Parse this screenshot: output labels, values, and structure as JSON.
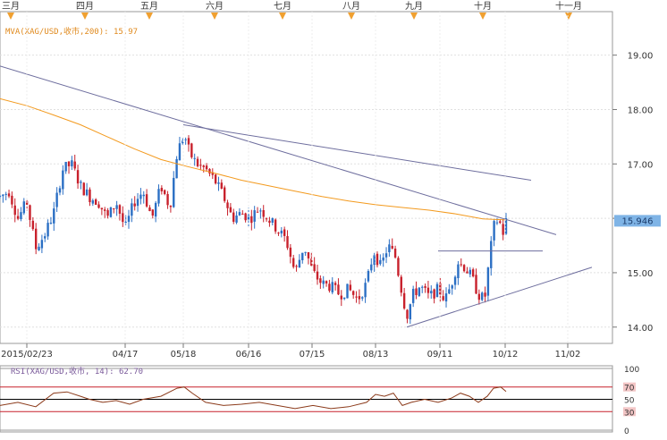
{
  "chart_data": {
    "type": "candlestick",
    "instrument": "XAG/USD",
    "month_labels": [
      "三月",
      "四月",
      "五月",
      "六月",
      "七月",
      "八月",
      "九月",
      "十月",
      "十一月"
    ],
    "date_labels": [
      "2015/02/23",
      "04/17",
      "05/18",
      "06/16",
      "07/15",
      "08/13",
      "09/11",
      "10/12",
      "11/02"
    ],
    "price_axis": {
      "ticks": [
        "19.00",
        "18.00",
        "17.00",
        "16.00",
        "15.00",
        "14.00"
      ],
      "tick_values": [
        19,
        18,
        17,
        16,
        15,
        14
      ],
      "ylim": [
        13.7,
        19.8
      ],
      "last_price_label": "15.946",
      "last_price": 15.946
    },
    "mva_label": "MVA(XAG/USD,收市,200): 15.97",
    "rsi_label": "RSI(XAG/USD,收市, 14): 62.70",
    "rsi_axis": {
      "ticks": [
        "100",
        "70",
        "50",
        "30",
        "0"
      ],
      "tick_values": [
        100,
        70,
        50,
        30,
        0
      ],
      "ylim": [
        0,
        100
      ]
    },
    "candle_count": 170,
    "price_path": [
      [
        0,
        16.4
      ],
      [
        10,
        16.5
      ],
      [
        20,
        16.0
      ],
      [
        30,
        16.3
      ],
      [
        40,
        15.45
      ],
      [
        50,
        15.7
      ],
      [
        60,
        16.1
      ],
      [
        70,
        16.9
      ],
      [
        80,
        17.0
      ],
      [
        90,
        16.6
      ],
      [
        100,
        16.4
      ],
      [
        110,
        16.3
      ],
      [
        120,
        16.0
      ],
      [
        130,
        16.3
      ],
      [
        140,
        15.8
      ],
      [
        150,
        16.3
      ],
      [
        160,
        16.5
      ],
      [
        170,
        16.0
      ],
      [
        180,
        16.6
      ],
      [
        190,
        16.2
      ],
      [
        198,
        17.2
      ],
      [
        206,
        17.55
      ],
      [
        212,
        17.2
      ],
      [
        220,
        17.0
      ],
      [
        230,
        16.9
      ],
      [
        240,
        16.7
      ],
      [
        250,
        16.4
      ],
      [
        260,
        16.0
      ],
      [
        270,
        16.1
      ],
      [
        280,
        16.0
      ],
      [
        290,
        16.2
      ],
      [
        300,
        16.0
      ],
      [
        310,
        15.8
      ],
      [
        320,
        15.6
      ],
      [
        330,
        15.0
      ],
      [
        340,
        15.5
      ],
      [
        350,
        15.0
      ],
      [
        360,
        14.8
      ],
      [
        370,
        14.75
      ],
      [
        380,
        14.6
      ],
      [
        390,
        14.7
      ],
      [
        400,
        14.5
      ],
      [
        410,
        14.8
      ],
      [
        418,
        15.4
      ],
      [
        426,
        15.1
      ],
      [
        434,
        15.5
      ],
      [
        442,
        15.3
      ],
      [
        450,
        14.6
      ],
      [
        455,
        14.2
      ],
      [
        462,
        14.6
      ],
      [
        470,
        14.75
      ],
      [
        480,
        14.55
      ],
      [
        490,
        14.7
      ],
      [
        498,
        14.5
      ],
      [
        505,
        14.8
      ],
      [
        512,
        15.2
      ],
      [
        520,
        15.1
      ],
      [
        528,
        14.9
      ],
      [
        535,
        14.6
      ],
      [
        542,
        14.5
      ],
      [
        548,
        15.35
      ],
      [
        553,
        15.9
      ],
      [
        558,
        16.0
      ],
      [
        562,
        15.7
      ],
      [
        566,
        15.95
      ]
    ],
    "mva_path": [
      [
        0,
        18.2
      ],
      [
        30,
        18.07
      ],
      [
        60,
        17.9
      ],
      [
        90,
        17.72
      ],
      [
        120,
        17.5
      ],
      [
        150,
        17.28
      ],
      [
        180,
        17.08
      ],
      [
        210,
        16.95
      ],
      [
        240,
        16.83
      ],
      [
        270,
        16.7
      ],
      [
        300,
        16.6
      ],
      [
        330,
        16.5
      ],
      [
        360,
        16.4
      ],
      [
        390,
        16.32
      ],
      [
        420,
        16.25
      ],
      [
        450,
        16.2
      ],
      [
        480,
        16.15
      ],
      [
        510,
        16.08
      ],
      [
        540,
        15.99
      ],
      [
        566,
        15.97
      ]
    ],
    "trendlines": [
      {
        "from": [
          0,
          18.8
        ],
        "to": [
          622,
          15.7
        ]
      },
      {
        "from": [
          205,
          17.72
        ],
        "to": [
          594,
          16.7
        ]
      },
      {
        "from": [
          455,
          14.0
        ],
        "to": [
          662,
          15.1
        ]
      },
      {
        "from": [
          490,
          15.4
        ],
        "to": [
          607,
          15.4
        ]
      }
    ],
    "rsi_path": [
      [
        0,
        40
      ],
      [
        20,
        45
      ],
      [
        40,
        38
      ],
      [
        60,
        60
      ],
      [
        75,
        62
      ],
      [
        90,
        55
      ],
      [
        100,
        50
      ],
      [
        115,
        45
      ],
      [
        130,
        48
      ],
      [
        145,
        42
      ],
      [
        160,
        50
      ],
      [
        180,
        55
      ],
      [
        198,
        68
      ],
      [
        206,
        70
      ],
      [
        215,
        60
      ],
      [
        230,
        45
      ],
      [
        250,
        40
      ],
      [
        270,
        42
      ],
      [
        290,
        45
      ],
      [
        310,
        40
      ],
      [
        330,
        35
      ],
      [
        350,
        40
      ],
      [
        370,
        35
      ],
      [
        390,
        38
      ],
      [
        410,
        45
      ],
      [
        420,
        58
      ],
      [
        430,
        55
      ],
      [
        440,
        60
      ],
      [
        450,
        40
      ],
      [
        460,
        45
      ],
      [
        475,
        50
      ],
      [
        490,
        45
      ],
      [
        505,
        52
      ],
      [
        515,
        60
      ],
      [
        525,
        55
      ],
      [
        535,
        45
      ],
      [
        545,
        55
      ],
      [
        552,
        68
      ],
      [
        560,
        70
      ],
      [
        566,
        62.7
      ]
    ]
  }
}
